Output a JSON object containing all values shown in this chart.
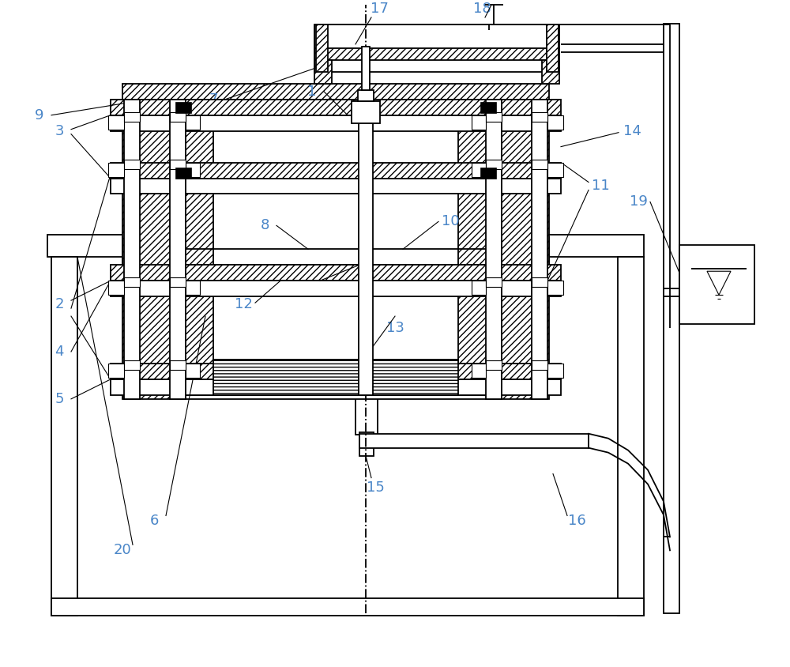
{
  "bg_color": "#ffffff",
  "line_color": "#000000",
  "label_color": "#4a86c8",
  "figsize": [
    10.0,
    8.44
  ],
  "dpi": 100,
  "label_fontsize": 13,
  "lw_main": 1.3,
  "lw_thin": 0.8,
  "hatch_dense": "////",
  "hatch_horiz": "----"
}
